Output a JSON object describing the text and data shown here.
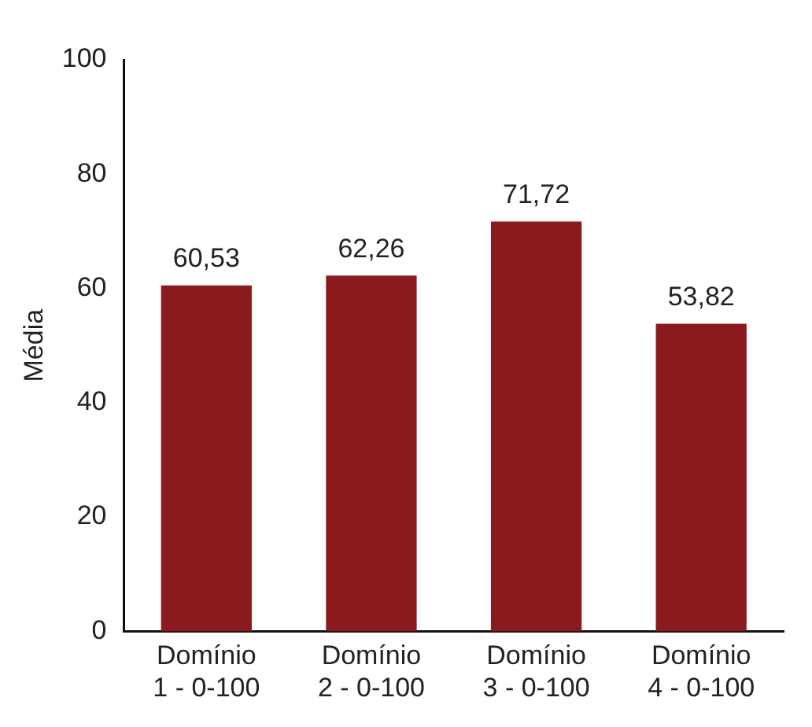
{
  "chart_data": {
    "type": "bar",
    "ylabel": "Média",
    "categories": [
      "Domínio\n1 - 0-100",
      "Domínio\n2 - 0-100",
      "Domínio\n3 - 0-100",
      "Domínio\n4 - 0-100"
    ],
    "values": [
      60.53,
      62.26,
      71.72,
      53.82
    ],
    "value_labels": [
      "60,53",
      "62,26",
      "71,72",
      "53,82"
    ],
    "color": "#8b1a1f",
    "ylim": [
      0,
      100
    ],
    "yticks": [
      0,
      20,
      40,
      60,
      80,
      100
    ],
    "grid": false,
    "legend": false
  }
}
